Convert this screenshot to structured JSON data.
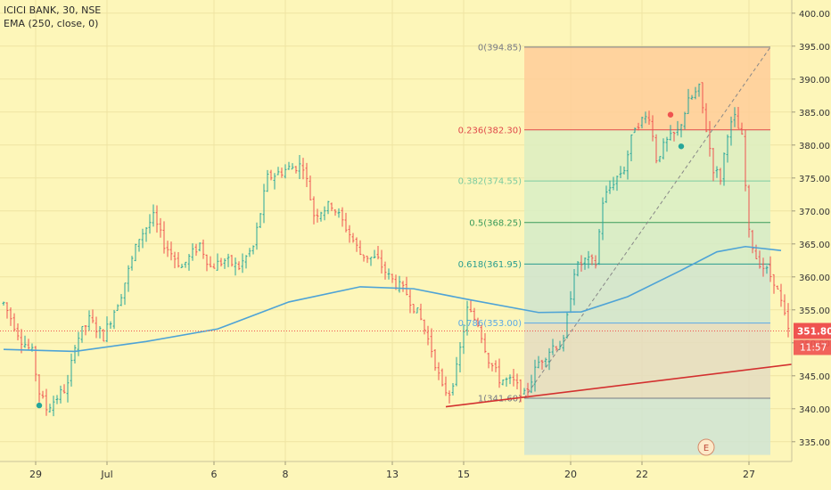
{
  "legend": {
    "symbol": "ICICI BANK, 30, NSE",
    "indicator": "EMA (250, close, 0)"
  },
  "colors": {
    "background": "#fdf6b9",
    "grid": "#efe4a2",
    "candle_up": "#26a69a",
    "candle_down": "#ef5350",
    "ema": "#4ea3d6",
    "trendline": "#d3302f",
    "last_price_badge": "#ef5350",
    "time_badge": "#ef5350",
    "fib_diagonal": "#888888"
  },
  "chart_data": {
    "type": "candlestick",
    "y_axis": {
      "min": 332,
      "max": 402,
      "ticks": [
        "335.00",
        "340.00",
        "345.00",
        "350.00",
        "355.00",
        "360.00",
        "365.00",
        "370.00",
        "375.00",
        "380.00",
        "385.00",
        "390.00",
        "395.00",
        "400.00"
      ]
    },
    "x_axis": {
      "labels": [
        {
          "text": "29",
          "bar": 9
        },
        {
          "text": "Jul",
          "bar": 29
        },
        {
          "text": "6",
          "bar": 59
        },
        {
          "text": "8",
          "bar": 79
        },
        {
          "text": "13",
          "bar": 109
        },
        {
          "text": "15",
          "bar": 129
        },
        {
          "text": "20",
          "bar": 159
        },
        {
          "text": "22",
          "bar": 179
        },
        {
          "text": "27",
          "bar": 209
        }
      ],
      "bar_count": 220
    },
    "fib_retracement": {
      "levels": [
        {
          "ratio": 0,
          "price": 394.85,
          "label": "0(394.85)",
          "color": "#787b86",
          "fill": "#ffcc99"
        },
        {
          "ratio": 0.236,
          "price": 382.3,
          "label": "0.236(382.30)",
          "color": "#e0494a",
          "fill": "#dcedc1"
        },
        {
          "ratio": 0.382,
          "price": 374.55,
          "label": "0.382(374.55)",
          "color": "#7ccba0",
          "fill": "#d8efc6"
        },
        {
          "ratio": 0.5,
          "price": 368.25,
          "label": "0.5(368.25)",
          "color": "#3a9a5a",
          "fill": "#d3ebc8"
        },
        {
          "ratio": 0.618,
          "price": 361.95,
          "label": "0.618(361.95)",
          "color": "#2a9d8f",
          "fill": "#cfe4cf"
        },
        {
          "ratio": 0.786,
          "price": 353.0,
          "label": "0.786(353.00)",
          "color": "#5aa9e6",
          "fill": "#e4dcc1"
        },
        {
          "ratio": 1,
          "price": 341.6,
          "label": "1(341.60)",
          "color": "#787b86",
          "fill": "#cfe4d4"
        }
      ],
      "start_bar": 146,
      "end_bar": 215,
      "bottom_price": 333
    },
    "trendline": {
      "from": {
        "bar": 124,
        "price": 340.3
      },
      "to": {
        "bar": 222,
        "price": 346.8
      }
    },
    "ema": [
      {
        "bar": 0,
        "price": 349.0
      },
      {
        "bar": 20,
        "price": 348.7
      },
      {
        "bar": 40,
        "price": 350.2
      },
      {
        "bar": 60,
        "price": 352.1
      },
      {
        "bar": 80,
        "price": 356.2
      },
      {
        "bar": 100,
        "price": 358.5
      },
      {
        "bar": 115,
        "price": 358.2
      },
      {
        "bar": 130,
        "price": 356.6
      },
      {
        "bar": 150,
        "price": 354.6
      },
      {
        "bar": 162,
        "price": 354.7
      },
      {
        "bar": 175,
        "price": 357.0
      },
      {
        "bar": 190,
        "price": 361.0
      },
      {
        "bar": 200,
        "price": 363.8
      },
      {
        "bar": 208,
        "price": 364.6
      },
      {
        "bar": 218,
        "price": 364.0
      }
    ],
    "price_path": [
      {
        "bar": 0,
        "price": 356.0
      },
      {
        "bar": 5,
        "price": 350.5
      },
      {
        "bar": 8,
        "price": 348.5
      },
      {
        "bar": 10,
        "price": 342.5
      },
      {
        "bar": 12,
        "price": 340.0
      },
      {
        "bar": 18,
        "price": 343.5
      },
      {
        "bar": 20,
        "price": 350.0
      },
      {
        "bar": 24,
        "price": 353.5
      },
      {
        "bar": 28,
        "price": 351.0
      },
      {
        "bar": 33,
        "price": 357.5
      },
      {
        "bar": 38,
        "price": 366.0
      },
      {
        "bar": 42,
        "price": 369.0
      },
      {
        "bar": 45,
        "price": 365.0
      },
      {
        "bar": 50,
        "price": 361.5
      },
      {
        "bar": 55,
        "price": 365.0
      },
      {
        "bar": 58,
        "price": 361.5
      },
      {
        "bar": 62,
        "price": 362.5
      },
      {
        "bar": 66,
        "price": 361.5
      },
      {
        "bar": 70,
        "price": 364.5
      },
      {
        "bar": 74,
        "price": 375.0
      },
      {
        "bar": 80,
        "price": 376.5
      },
      {
        "bar": 84,
        "price": 377.0
      },
      {
        "bar": 87,
        "price": 369.5
      },
      {
        "bar": 92,
        "price": 371.0
      },
      {
        "bar": 96,
        "price": 367.5
      },
      {
        "bar": 100,
        "price": 363.5
      },
      {
        "bar": 105,
        "price": 362.5
      },
      {
        "bar": 108,
        "price": 360.0
      },
      {
        "bar": 113,
        "price": 357.5
      },
      {
        "bar": 117,
        "price": 353.5
      },
      {
        "bar": 120,
        "price": 349.0
      },
      {
        "bar": 123,
        "price": 343.0
      },
      {
        "bar": 125,
        "price": 342.5
      },
      {
        "bar": 127,
        "price": 346.0
      },
      {
        "bar": 130,
        "price": 355.0
      },
      {
        "bar": 133,
        "price": 353.0
      },
      {
        "bar": 136,
        "price": 347.5
      },
      {
        "bar": 139,
        "price": 344.5
      },
      {
        "bar": 143,
        "price": 344.0
      },
      {
        "bar": 146,
        "price": 342.0
      },
      {
        "bar": 150,
        "price": 347.0
      },
      {
        "bar": 154,
        "price": 349.5
      },
      {
        "bar": 157,
        "price": 350.0
      },
      {
        "bar": 160,
        "price": 361.0
      },
      {
        "bar": 163,
        "price": 362.5
      },
      {
        "bar": 166,
        "price": 362.0
      },
      {
        "bar": 168,
        "price": 371.5
      },
      {
        "bar": 171,
        "price": 374.5
      },
      {
        "bar": 174,
        "price": 376.5
      },
      {
        "bar": 177,
        "price": 383.0
      },
      {
        "bar": 181,
        "price": 384.5
      },
      {
        "bar": 183,
        "price": 378.0
      },
      {
        "bar": 186,
        "price": 380.5
      },
      {
        "bar": 189,
        "price": 382.0
      },
      {
        "bar": 192,
        "price": 386.5
      },
      {
        "bar": 195,
        "price": 388.5
      },
      {
        "bar": 197,
        "price": 382.5
      },
      {
        "bar": 199,
        "price": 376.5
      },
      {
        "bar": 201,
        "price": 375.0
      },
      {
        "bar": 203,
        "price": 382.0
      },
      {
        "bar": 205,
        "price": 384.0
      },
      {
        "bar": 207,
        "price": 381.0
      },
      {
        "bar": 209,
        "price": 366.5
      },
      {
        "bar": 211,
        "price": 363.0
      },
      {
        "bar": 213,
        "price": 361.5
      },
      {
        "bar": 216,
        "price": 359.5
      },
      {
        "bar": 218,
        "price": 356.0
      },
      {
        "bar": 220,
        "price": 351.8
      }
    ],
    "last_price": {
      "value": 351.8,
      "label": "351.80"
    },
    "time_to_close": "11:57",
    "event_marker": {
      "label": "E",
      "bar": 197
    },
    "signal_dots": [
      {
        "bar": 10,
        "price": 340.5,
        "color": "#26a69a"
      },
      {
        "bar": 187,
        "price": 384.6,
        "color": "#ef5350"
      },
      {
        "bar": 190,
        "price": 379.8,
        "color": "#26a69a"
      }
    ]
  }
}
